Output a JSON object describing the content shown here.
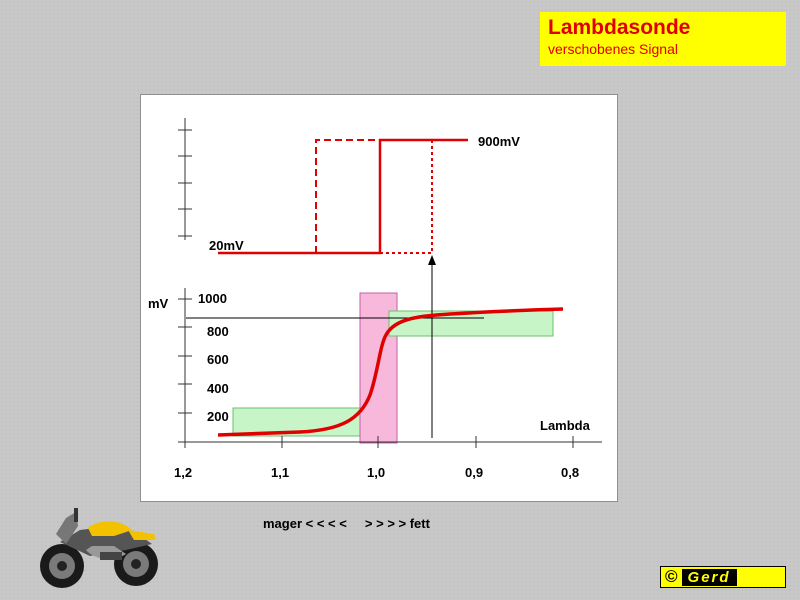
{
  "title": {
    "main": "Lambdasonde",
    "sub": "verschobenes Signal"
  },
  "diagram": {
    "upper_high_label": "900mV",
    "upper_low_label": "20mV",
    "y_unit": "mV",
    "y_ticks": [
      "1000",
      "800",
      "600",
      "400",
      "200"
    ],
    "x_axis_label": "Lambda",
    "x_ticks": [
      "1,2",
      "1,1",
      "1,0",
      "0,9",
      "0,8"
    ]
  },
  "caption": {
    "lean": "mager < < < <",
    "rich": "> > > > fett"
  },
  "copyright": {
    "symbol": "©",
    "brand": "Gerd"
  },
  "colors": {
    "signal_curve": "#e00000",
    "title_background": "#ffff00",
    "lean_window": "#c8f5c8",
    "stoich_window": "#f7b8dc",
    "rich_window": "#c8f5c8"
  },
  "icons": [
    "motorcycle-icon"
  ]
}
